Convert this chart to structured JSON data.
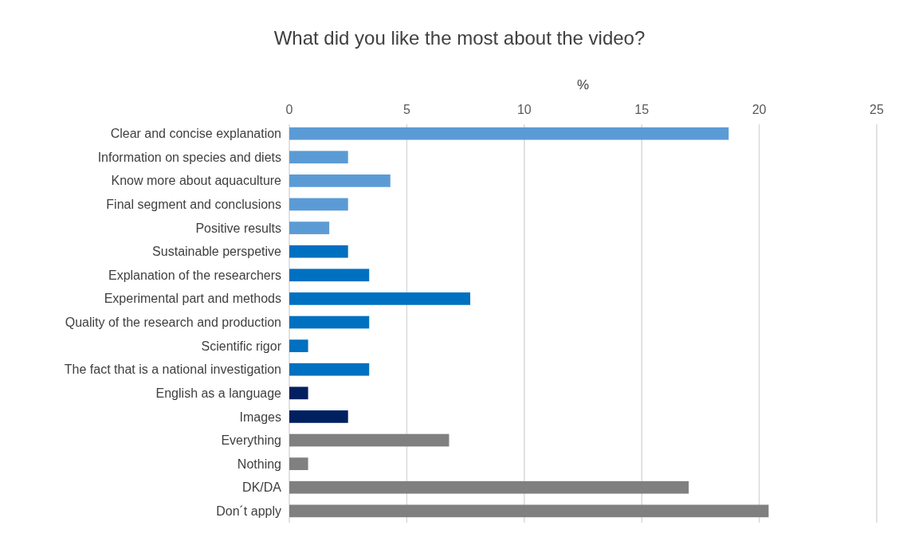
{
  "chart_data": {
    "type": "bar",
    "orientation": "horizontal",
    "title": "What did you like the most about the video?",
    "xlabel": "%",
    "categories": [
      "Clear and concise explanation",
      "Information on species and diets",
      "Know more about aquaculture",
      "Final segment and conclusions",
      "Positive results",
      "Sustainable perspetive",
      "Explanation of the researchers",
      "Experimental part and methods",
      "Quality of the research and production",
      "Scientific rigor",
      "The fact that is a national investigation",
      "English as a language",
      "Images",
      "Everything",
      "Nothing",
      "DK/DA",
      "Don´t apply"
    ],
    "values": [
      18.7,
      2.5,
      4.3,
      2.5,
      1.7,
      2.5,
      3.4,
      7.7,
      3.4,
      0.8,
      3.4,
      0.8,
      2.5,
      6.8,
      0.8,
      17.0,
      20.4
    ],
    "colors": [
      "#5b9bd5",
      "#5b9bd5",
      "#5b9bd5",
      "#5b9bd5",
      "#5b9bd5",
      "#0070c0",
      "#0070c0",
      "#0070c0",
      "#0070c0",
      "#0070c0",
      "#0070c0",
      "#002060",
      "#002060",
      "#808080",
      "#808080",
      "#808080",
      "#808080"
    ],
    "xlim": [
      0,
      25
    ],
    "xticks": [
      0,
      5,
      10,
      15,
      20,
      25
    ],
    "grid": "x"
  }
}
